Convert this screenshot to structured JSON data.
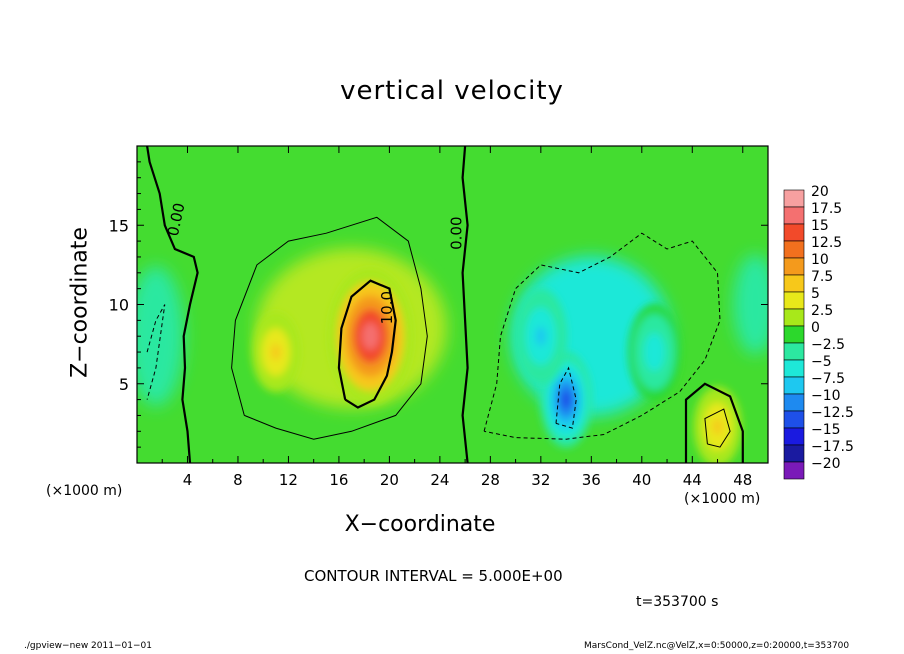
{
  "chart_data": {
    "type": "heatmap",
    "title": "vertical velocity",
    "xlabel": "X−coordinate",
    "ylabel": "Z−coordinate",
    "x_unit_label": "(×1000 m)",
    "xlim": [
      0,
      50
    ],
    "ylim": [
      0,
      20
    ],
    "x_ticks": [
      "4",
      "8",
      "12",
      "16",
      "20",
      "24",
      "28",
      "32",
      "36",
      "40",
      "44",
      "48"
    ],
    "x_tick_values": [
      4,
      8,
      12,
      16,
      20,
      24,
      28,
      32,
      36,
      40,
      44,
      48
    ],
    "y_ticks": [
      "5",
      "10",
      "15"
    ],
    "y_tick_values": [
      5,
      10,
      15
    ],
    "contour_labels": [
      "0.00",
      "0.00",
      "10.0"
    ],
    "contour_interval_text": "CONTOUR INTERVAL = 5.000E+00",
    "time_text": "t=353700 s",
    "colorbar": {
      "levels": [
        "20",
        "17.5",
        "15",
        "12.5",
        "10",
        "7.5",
        "5",
        "2.5",
        "0",
        "−2.5",
        "−5",
        "−7.5",
        "−10",
        "−12.5",
        "−15",
        "−17.5",
        "−20"
      ],
      "colors": [
        "#f7a0a0",
        "#f47070",
        "#f24a2a",
        "#f2701e",
        "#f49a1c",
        "#f7c81a",
        "#e8e81a",
        "#a8e81a",
        "#2cd82c",
        "#2ce8a0",
        "#1ee8d8",
        "#1ec8f0",
        "#1e8af0",
        "#1e50e8",
        "#1a1ae0",
        "#1a1aa0",
        "#7a1ab8"
      ]
    },
    "features": [
      {
        "type": "updraft",
        "x": 18.5,
        "z": 8,
        "value": 18
      },
      {
        "type": "updraft",
        "x": 11,
        "z": 7,
        "value": 7
      },
      {
        "type": "updraft",
        "x": 46,
        "z": 2.3,
        "value": 7
      },
      {
        "type": "downdraft",
        "x": 34,
        "z": 4,
        "value": -12
      },
      {
        "type": "downdraft",
        "x": 32,
        "z": 8,
        "value": -7
      },
      {
        "type": "downdraft",
        "x": 41,
        "z": 7,
        "value": -5
      }
    ]
  },
  "footer_left": "./gpview−new   2011−01−01",
  "footer_right": "MarsCond_VelZ.nc@VelZ,x=0:50000,z=0:20000,t=353700"
}
